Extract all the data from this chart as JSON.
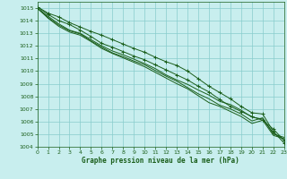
{
  "xlabel": "Graphe pression niveau de la mer (hPa)",
  "bg_color": "#c8eeee",
  "grid_color": "#88cccc",
  "line_color": "#1a5e1a",
  "xlim": [
    0,
    23
  ],
  "ylim": [
    1004,
    1015.5
  ],
  "yticks": [
    1004,
    1005,
    1006,
    1007,
    1008,
    1009,
    1010,
    1011,
    1012,
    1013,
    1014,
    1015
  ],
  "xticks": [
    0,
    1,
    2,
    3,
    4,
    5,
    6,
    7,
    8,
    9,
    10,
    11,
    12,
    13,
    14,
    15,
    16,
    17,
    18,
    19,
    20,
    21,
    22,
    23
  ],
  "lines": [
    {
      "y": [
        1015.1,
        1014.6,
        1014.3,
        1013.85,
        1013.5,
        1013.15,
        1012.85,
        1012.5,
        1012.15,
        1011.8,
        1011.5,
        1011.1,
        1010.75,
        1010.45,
        1010.0,
        1009.4,
        1008.8,
        1008.3,
        1007.8,
        1007.2,
        1006.7,
        1006.6,
        1005.2,
        1004.3
      ],
      "marker": true
    },
    {
      "y": [
        1015.0,
        1014.35,
        1013.75,
        1013.25,
        1013.0,
        1012.5,
        1012.0,
        1011.6,
        1011.3,
        1010.95,
        1010.6,
        1010.2,
        1009.7,
        1009.3,
        1008.95,
        1008.5,
        1008.1,
        1007.6,
        1007.35,
        1006.9,
        1006.35,
        1006.2,
        1005.1,
        1004.55
      ],
      "marker": false
    },
    {
      "y": [
        1015.0,
        1014.25,
        1013.65,
        1013.2,
        1012.95,
        1012.4,
        1011.9,
        1011.45,
        1011.15,
        1010.8,
        1010.5,
        1010.05,
        1009.6,
        1009.2,
        1008.7,
        1008.2,
        1007.8,
        1007.3,
        1007.0,
        1006.6,
        1006.05,
        1006.3,
        1005.0,
        1004.75
      ],
      "marker": false
    },
    {
      "y": [
        1015.0,
        1014.2,
        1013.55,
        1013.1,
        1012.85,
        1012.35,
        1011.8,
        1011.4,
        1011.05,
        1010.7,
        1010.35,
        1009.9,
        1009.45,
        1009.0,
        1008.6,
        1008.05,
        1007.5,
        1007.2,
        1006.8,
        1006.4,
        1005.85,
        1006.1,
        1004.9,
        1004.65
      ],
      "marker": false
    },
    {
      "y": [
        1015.1,
        1014.5,
        1014.0,
        1013.7,
        1013.25,
        1012.75,
        1012.2,
        1011.9,
        1011.55,
        1011.2,
        1010.9,
        1010.5,
        1010.1,
        1009.7,
        1009.3,
        1008.8,
        1008.35,
        1007.75,
        1007.2,
        1006.8,
        1006.4,
        1006.1,
        1005.4,
        1004.5
      ],
      "marker": true
    }
  ]
}
